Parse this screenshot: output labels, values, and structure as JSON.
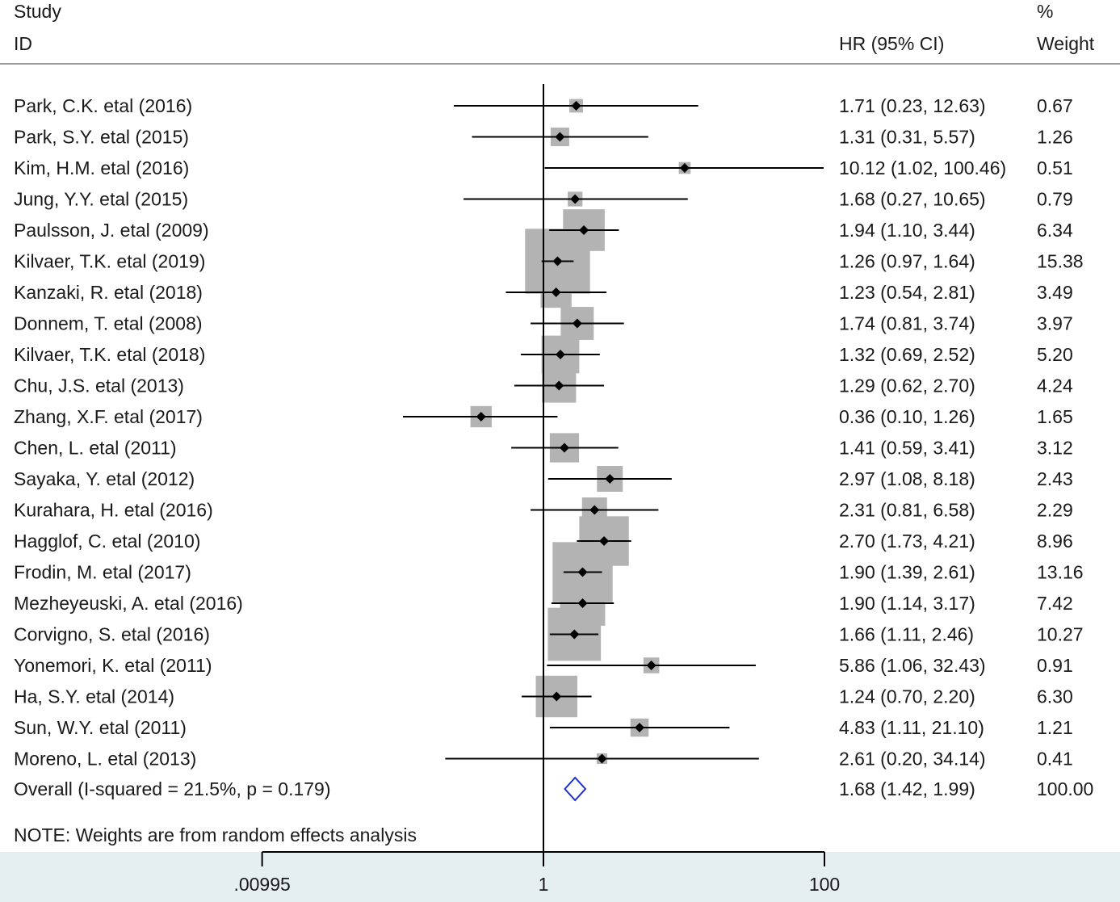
{
  "header": {
    "study_label": "Study",
    "id_label": "ID",
    "hr_label": "HR (95% CI)",
    "pct_label": "%",
    "weight_label": "Weight"
  },
  "note": "NOTE: Weights are from random effects analysis",
  "colors": {
    "box": "#b3b3b3",
    "point": "#000000",
    "diamond": "#1f2fd1",
    "axis_band": "#e6eff0",
    "rule": "#9a9a9a"
  },
  "chart_data": {
    "type": "forest",
    "x_scale": "log",
    "reference_line": 1,
    "xticks": [
      {
        "value": 0.00995,
        "label": ".00995"
      },
      {
        "value": 1,
        "label": "1"
      },
      {
        "value": 100,
        "label": "100"
      }
    ],
    "studies": [
      {
        "id": "Park, C.K. etal (2016)",
        "hr": 1.71,
        "lo": 0.23,
        "hi": 12.63,
        "hr_text": "1.71 (0.23, 12.63)",
        "weight": 0.67,
        "weight_text": "0.67"
      },
      {
        "id": "Park, S.Y. etal (2015)",
        "hr": 1.31,
        "lo": 0.31,
        "hi": 5.57,
        "hr_text": "1.31 (0.31, 5.57)",
        "weight": 1.26,
        "weight_text": "1.26"
      },
      {
        "id": "Kim, H.M. etal (2016)",
        "hr": 10.12,
        "lo": 1.02,
        "hi": 100.46,
        "hr_text": "10.12 (1.02, 100.46)",
        "weight": 0.51,
        "weight_text": "0.51"
      },
      {
        "id": "Jung, Y.Y. etal (2015)",
        "hr": 1.68,
        "lo": 0.27,
        "hi": 10.65,
        "hr_text": "1.68 (0.27, 10.65)",
        "weight": 0.79,
        "weight_text": "0.79"
      },
      {
        "id": "Paulsson, J. etal (2009)",
        "hr": 1.94,
        "lo": 1.1,
        "hi": 3.44,
        "hr_text": "1.94 (1.10, 3.44)",
        "weight": 6.34,
        "weight_text": "6.34"
      },
      {
        "id": "Kilvaer, T.K. etal (2019)",
        "hr": 1.26,
        "lo": 0.97,
        "hi": 1.64,
        "hr_text": "1.26 (0.97, 1.64)",
        "weight": 15.38,
        "weight_text": "15.38"
      },
      {
        "id": "Kanzaki, R. etal (2018)",
        "hr": 1.23,
        "lo": 0.54,
        "hi": 2.81,
        "hr_text": "1.23 (0.54, 2.81)",
        "weight": 3.49,
        "weight_text": "3.49"
      },
      {
        "id": "Donnem, T. etal (2008)",
        "hr": 1.74,
        "lo": 0.81,
        "hi": 3.74,
        "hr_text": "1.74 (0.81, 3.74)",
        "weight": 3.97,
        "weight_text": "3.97"
      },
      {
        "id": "Kilvaer, T.K. etal (2018)",
        "hr": 1.32,
        "lo": 0.69,
        "hi": 2.52,
        "hr_text": "1.32 (0.69, 2.52)",
        "weight": 5.2,
        "weight_text": "5.20"
      },
      {
        "id": "Chu, J.S. etal  (2013)",
        "hr": 1.29,
        "lo": 0.62,
        "hi": 2.7,
        "hr_text": "1.29 (0.62, 2.70)",
        "weight": 4.24,
        "weight_text": "4.24"
      },
      {
        "id": "Zhang, X.F. etal (2017)",
        "hr": 0.36,
        "lo": 0.1,
        "hi": 1.26,
        "hr_text": "0.36 (0.10, 1.26)",
        "weight": 1.65,
        "weight_text": "1.65"
      },
      {
        "id": "Chen, L. etal (2011)",
        "hr": 1.41,
        "lo": 0.59,
        "hi": 3.41,
        "hr_text": "1.41 (0.59, 3.41)",
        "weight": 3.12,
        "weight_text": "3.12"
      },
      {
        "id": "Sayaka, Y. etal (2012)",
        "hr": 2.97,
        "lo": 1.08,
        "hi": 8.18,
        "hr_text": "2.97 (1.08, 8.18)",
        "weight": 2.43,
        "weight_text": "2.43"
      },
      {
        "id": "Kurahara, H. etal  (2016)",
        "hr": 2.31,
        "lo": 0.81,
        "hi": 6.58,
        "hr_text": "2.31 (0.81, 6.58)",
        "weight": 2.29,
        "weight_text": "2.29"
      },
      {
        "id": "Hagglof, C. etal (2010)",
        "hr": 2.7,
        "lo": 1.73,
        "hi": 4.21,
        "hr_text": "2.70 (1.73, 4.21)",
        "weight": 8.96,
        "weight_text": "8.96"
      },
      {
        "id": "Frodin, M. etal  (2017)",
        "hr": 1.9,
        "lo": 1.39,
        "hi": 2.61,
        "hr_text": "1.90 (1.39, 2.61)",
        "weight": 13.16,
        "weight_text": "13.16"
      },
      {
        "id": "Mezheyeuski, A. etal (2016)",
        "hr": 1.9,
        "lo": 1.14,
        "hi": 3.17,
        "hr_text": "1.90 (1.14, 3.17)",
        "weight": 7.42,
        "weight_text": "7.42"
      },
      {
        "id": "Corvigno, S. etal  (2016)",
        "hr": 1.66,
        "lo": 1.11,
        "hi": 2.46,
        "hr_text": "1.66 (1.11, 2.46)",
        "weight": 10.27,
        "weight_text": "10.27"
      },
      {
        "id": "Yonemori, K. etal  (2011)",
        "hr": 5.86,
        "lo": 1.06,
        "hi": 32.43,
        "hr_text": "5.86 (1.06, 32.43)",
        "weight": 0.91,
        "weight_text": "0.91"
      },
      {
        "id": "Ha, S.Y. etal  (2014)",
        "hr": 1.24,
        "lo": 0.7,
        "hi": 2.2,
        "hr_text": "1.24 (0.70, 2.20)",
        "weight": 6.3,
        "weight_text": "6.30"
      },
      {
        "id": "Sun, W.Y. etal (2011)",
        "hr": 4.83,
        "lo": 1.11,
        "hi": 21.1,
        "hr_text": "4.83 (1.11, 21.10)",
        "weight": 1.21,
        "weight_text": "1.21"
      },
      {
        "id": "Moreno, L. etal (2013)",
        "hr": 2.61,
        "lo": 0.2,
        "hi": 34.14,
        "hr_text": "2.61 (0.20, 34.14)",
        "weight": 0.41,
        "weight_text": "0.41"
      }
    ],
    "overall": {
      "label": "Overall  (I-squared = 21.5%, p = 0.179)",
      "hr": 1.68,
      "lo": 1.42,
      "hi": 1.99,
      "hr_text": "1.68 (1.42, 1.99)",
      "weight_text": "100.00"
    }
  }
}
